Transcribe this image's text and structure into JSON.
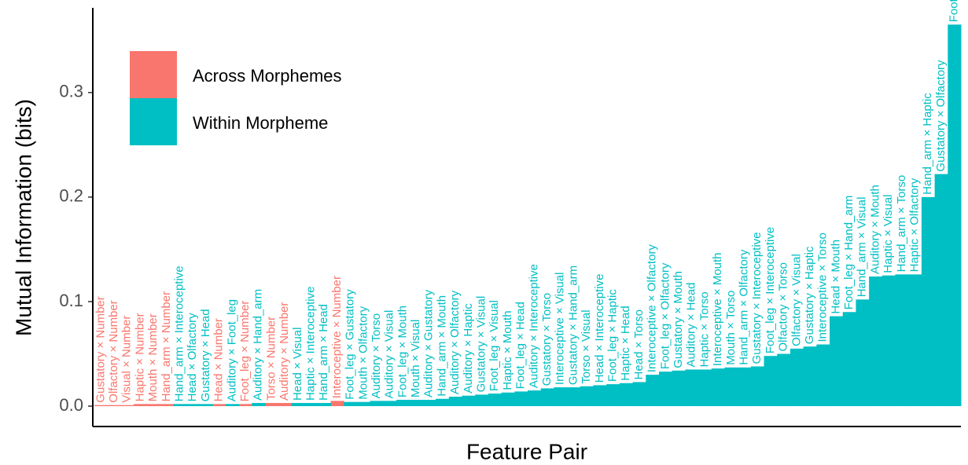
{
  "chart_data": {
    "type": "bar",
    "x_label": "Feature Pair",
    "y_label": "Mutual Information (bits)",
    "categories": [
      "Gustatory × Number",
      "Olfactory × Number",
      "Visual × Number",
      "Haptic × Number",
      "Mouth × Number",
      "Hand_arm × Number",
      "Hand_arm × Interoceptive",
      "Head × Olfactory",
      "Gustatory × Head",
      "Head × Number",
      "Auditory × Foot_leg",
      "Foot_leg × Number",
      "Auditory × Hand_arm",
      "Torso × Number",
      "Auditory × Number",
      "Head × Visual",
      "Haptic × Interoceptive",
      "Hand_arm × Head",
      "Interoceptive × Number",
      "Foot_leg × Gustatory",
      "Mouth × Olfactory",
      "Auditory × Torso",
      "Auditory × Visual",
      "Foot_leg × Mouth",
      "Mouth × Visual",
      "Auditory × Gustatory",
      "Hand_arm × Mouth",
      "Auditory × Olfactory",
      "Auditory × Haptic",
      "Gustatory × Visual",
      "Foot_leg × Visual",
      "Haptic × Mouth",
      "Foot_leg × Head",
      "Auditory × Interoceptive",
      "Gustatory × Torso",
      "Interoceptive × Visual",
      "Gustatory × Hand_arm",
      "Torso × Visual",
      "Head × Interoceptive",
      "Foot_leg × Haptic",
      "Haptic × Head",
      "Head × Torso",
      "Interoceptive × Olfactory",
      "Foot_leg × Olfactory",
      "Gustatory × Mouth",
      "Auditory × Head",
      "Haptic × Torso",
      "Interoceptive × Mouth",
      "Mouth × Torso",
      "Hand_arm × Olfactory",
      "Gustatory × Interoceptive",
      "Foot_leg × Interoceptive",
      "Olfactory × Torso",
      "Olfactory × Visual",
      "Gustatory × Haptic",
      "Interoceptive × Torso",
      "Head × Mouth",
      "Foot_leg × Hand_arm",
      "Hand_arm × Visual",
      "Auditory × Mouth",
      "Haptic × Visual",
      "Hand_arm × Torso",
      "Haptic × Olfactory",
      "Hand_arm × Haptic",
      "Gustatory × Olfactory",
      "Foot_leg × Torso"
    ],
    "series": [
      {
        "name": "Across Morphemes",
        "color": "#F8766D",
        "values": [
          0.001,
          0.001,
          0.001,
          0.002,
          0.002,
          0.002,
          null,
          null,
          null,
          0.002,
          null,
          0.002,
          null,
          0.003,
          0.003,
          null,
          null,
          null,
          0.005,
          null,
          null,
          null,
          null,
          null,
          null,
          null,
          null,
          null,
          null,
          null,
          null,
          null,
          null,
          null,
          null,
          null,
          null,
          null,
          null,
          null,
          null,
          null,
          null,
          null,
          null,
          null,
          null,
          null,
          null,
          null,
          null,
          null,
          null,
          null,
          null,
          null,
          null,
          null,
          null,
          null,
          null,
          null,
          null,
          null,
          null,
          null
        ]
      },
      {
        "name": "Within Morpheme",
        "color": "#00BFC4",
        "values": [
          null,
          null,
          null,
          null,
          null,
          null,
          0.002,
          0.002,
          0.002,
          null,
          0.002,
          null,
          0.003,
          null,
          null,
          0.003,
          0.003,
          0.003,
          null,
          0.004,
          0.004,
          0.005,
          0.005,
          0.006,
          0.006,
          0.006,
          0.007,
          0.009,
          0.01,
          0.011,
          0.012,
          0.013,
          0.014,
          0.015,
          0.017,
          0.018,
          0.018,
          0.019,
          0.02,
          0.021,
          0.022,
          0.023,
          0.03,
          0.033,
          0.034,
          0.035,
          0.035,
          0.036,
          0.037,
          0.037,
          0.038,
          0.048,
          0.05,
          0.055,
          0.057,
          0.059,
          0.086,
          0.09,
          0.102,
          0.124,
          0.125,
          0.126,
          0.126,
          0.2,
          0.222,
          0.365
        ]
      }
    ],
    "ylim": [
      -0.0195,
      0.381
    ],
    "yticks": [
      {
        "value": 0,
        "label": "0.0"
      },
      {
        "value": 0.1,
        "label": "0.1"
      },
      {
        "value": 0.2,
        "label": "0.2"
      },
      {
        "value": 0.3,
        "label": "0.3"
      }
    ]
  }
}
